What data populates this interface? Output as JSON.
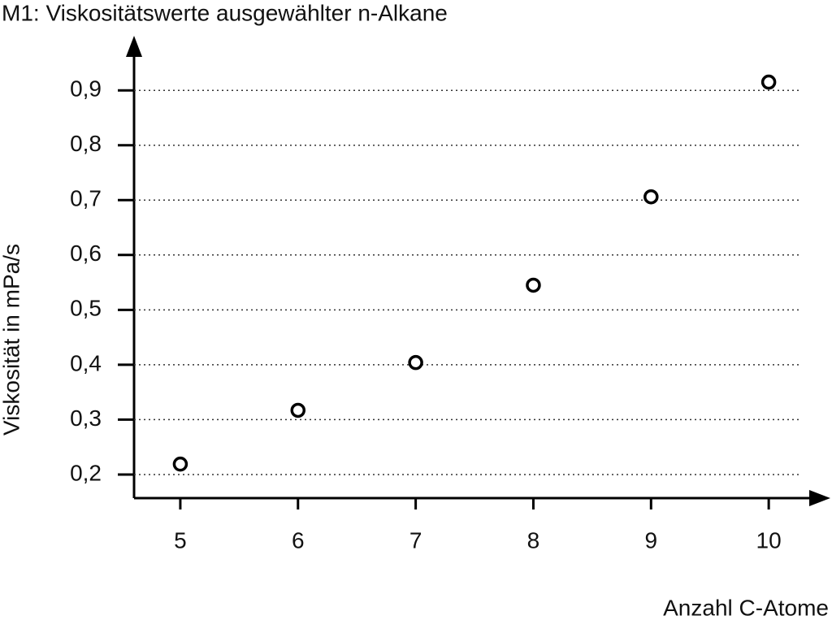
{
  "chart_data": {
    "type": "scatter",
    "title": "M1: Viskositätswerte ausgewählter n-Alkane",
    "x_label": "Anzahl C-Atome",
    "y_label": "Viskosität in mPa/s",
    "x": [
      5,
      6,
      7,
      8,
      9,
      10
    ],
    "values": [
      0.219,
      0.317,
      0.404,
      0.545,
      0.706,
      0.915
    ],
    "color": "#000000",
    "xlim": [
      4.607,
      10.51
    ],
    "xticks": [
      5,
      6,
      7,
      8,
      9,
      10
    ],
    "ylim": [
      0.157,
      0.998
    ],
    "yticks": [
      {
        "value": 0.2,
        "label": "0,2"
      },
      {
        "value": 0.3,
        "label": "0,3"
      },
      {
        "value": 0.4,
        "label": "0,4"
      },
      {
        "value": 0.5,
        "label": "0,5"
      },
      {
        "value": 0.6,
        "label": "0,6"
      },
      {
        "value": 0.7,
        "label": "0,7"
      },
      {
        "value": 0.8,
        "label": "0,8"
      },
      {
        "value": 0.9,
        "label": "0,9"
      }
    ],
    "grid": true
  }
}
